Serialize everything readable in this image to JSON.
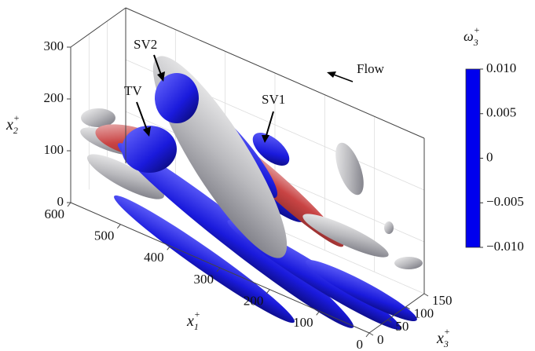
{
  "chart_data": {
    "type": "isosurface3d",
    "x1label": {
      "base": "x",
      "sub": "1",
      "sup": "+"
    },
    "x2label": {
      "base": "x",
      "sub": "2",
      "sup": "+"
    },
    "x3label": {
      "base": "x",
      "sub": "3",
      "sup": "+"
    },
    "x1lim": [
      0,
      600
    ],
    "x1ticks": [
      0,
      100,
      200,
      300,
      400,
      500,
      600
    ],
    "x2lim": [
      0,
      300
    ],
    "x2ticks": [
      0,
      100,
      200,
      300
    ],
    "x3lim": [
      0,
      150
    ],
    "x3ticks": [
      0,
      50,
      100,
      150
    ],
    "grid": true,
    "annotations": [
      "SV2",
      "TV",
      "SV1",
      "Flow"
    ],
    "colorbar": {
      "label": {
        "base": "ω",
        "sub": "3",
        "sup": "+"
      },
      "lim": [
        -0.01,
        0.01
      ],
      "ticks": [
        {
          "value": 0.01,
          "label": "0.010"
        },
        {
          "value": 0.005,
          "label": "0.005"
        },
        0,
        {
          "value": -0.005,
          "label": "−0.005"
        },
        {
          "value": -0.01,
          "label": "−0.010"
        }
      ],
      "colors": [
        "#0000ee",
        "#f2f2f2",
        "#dd0000"
      ]
    }
  }
}
